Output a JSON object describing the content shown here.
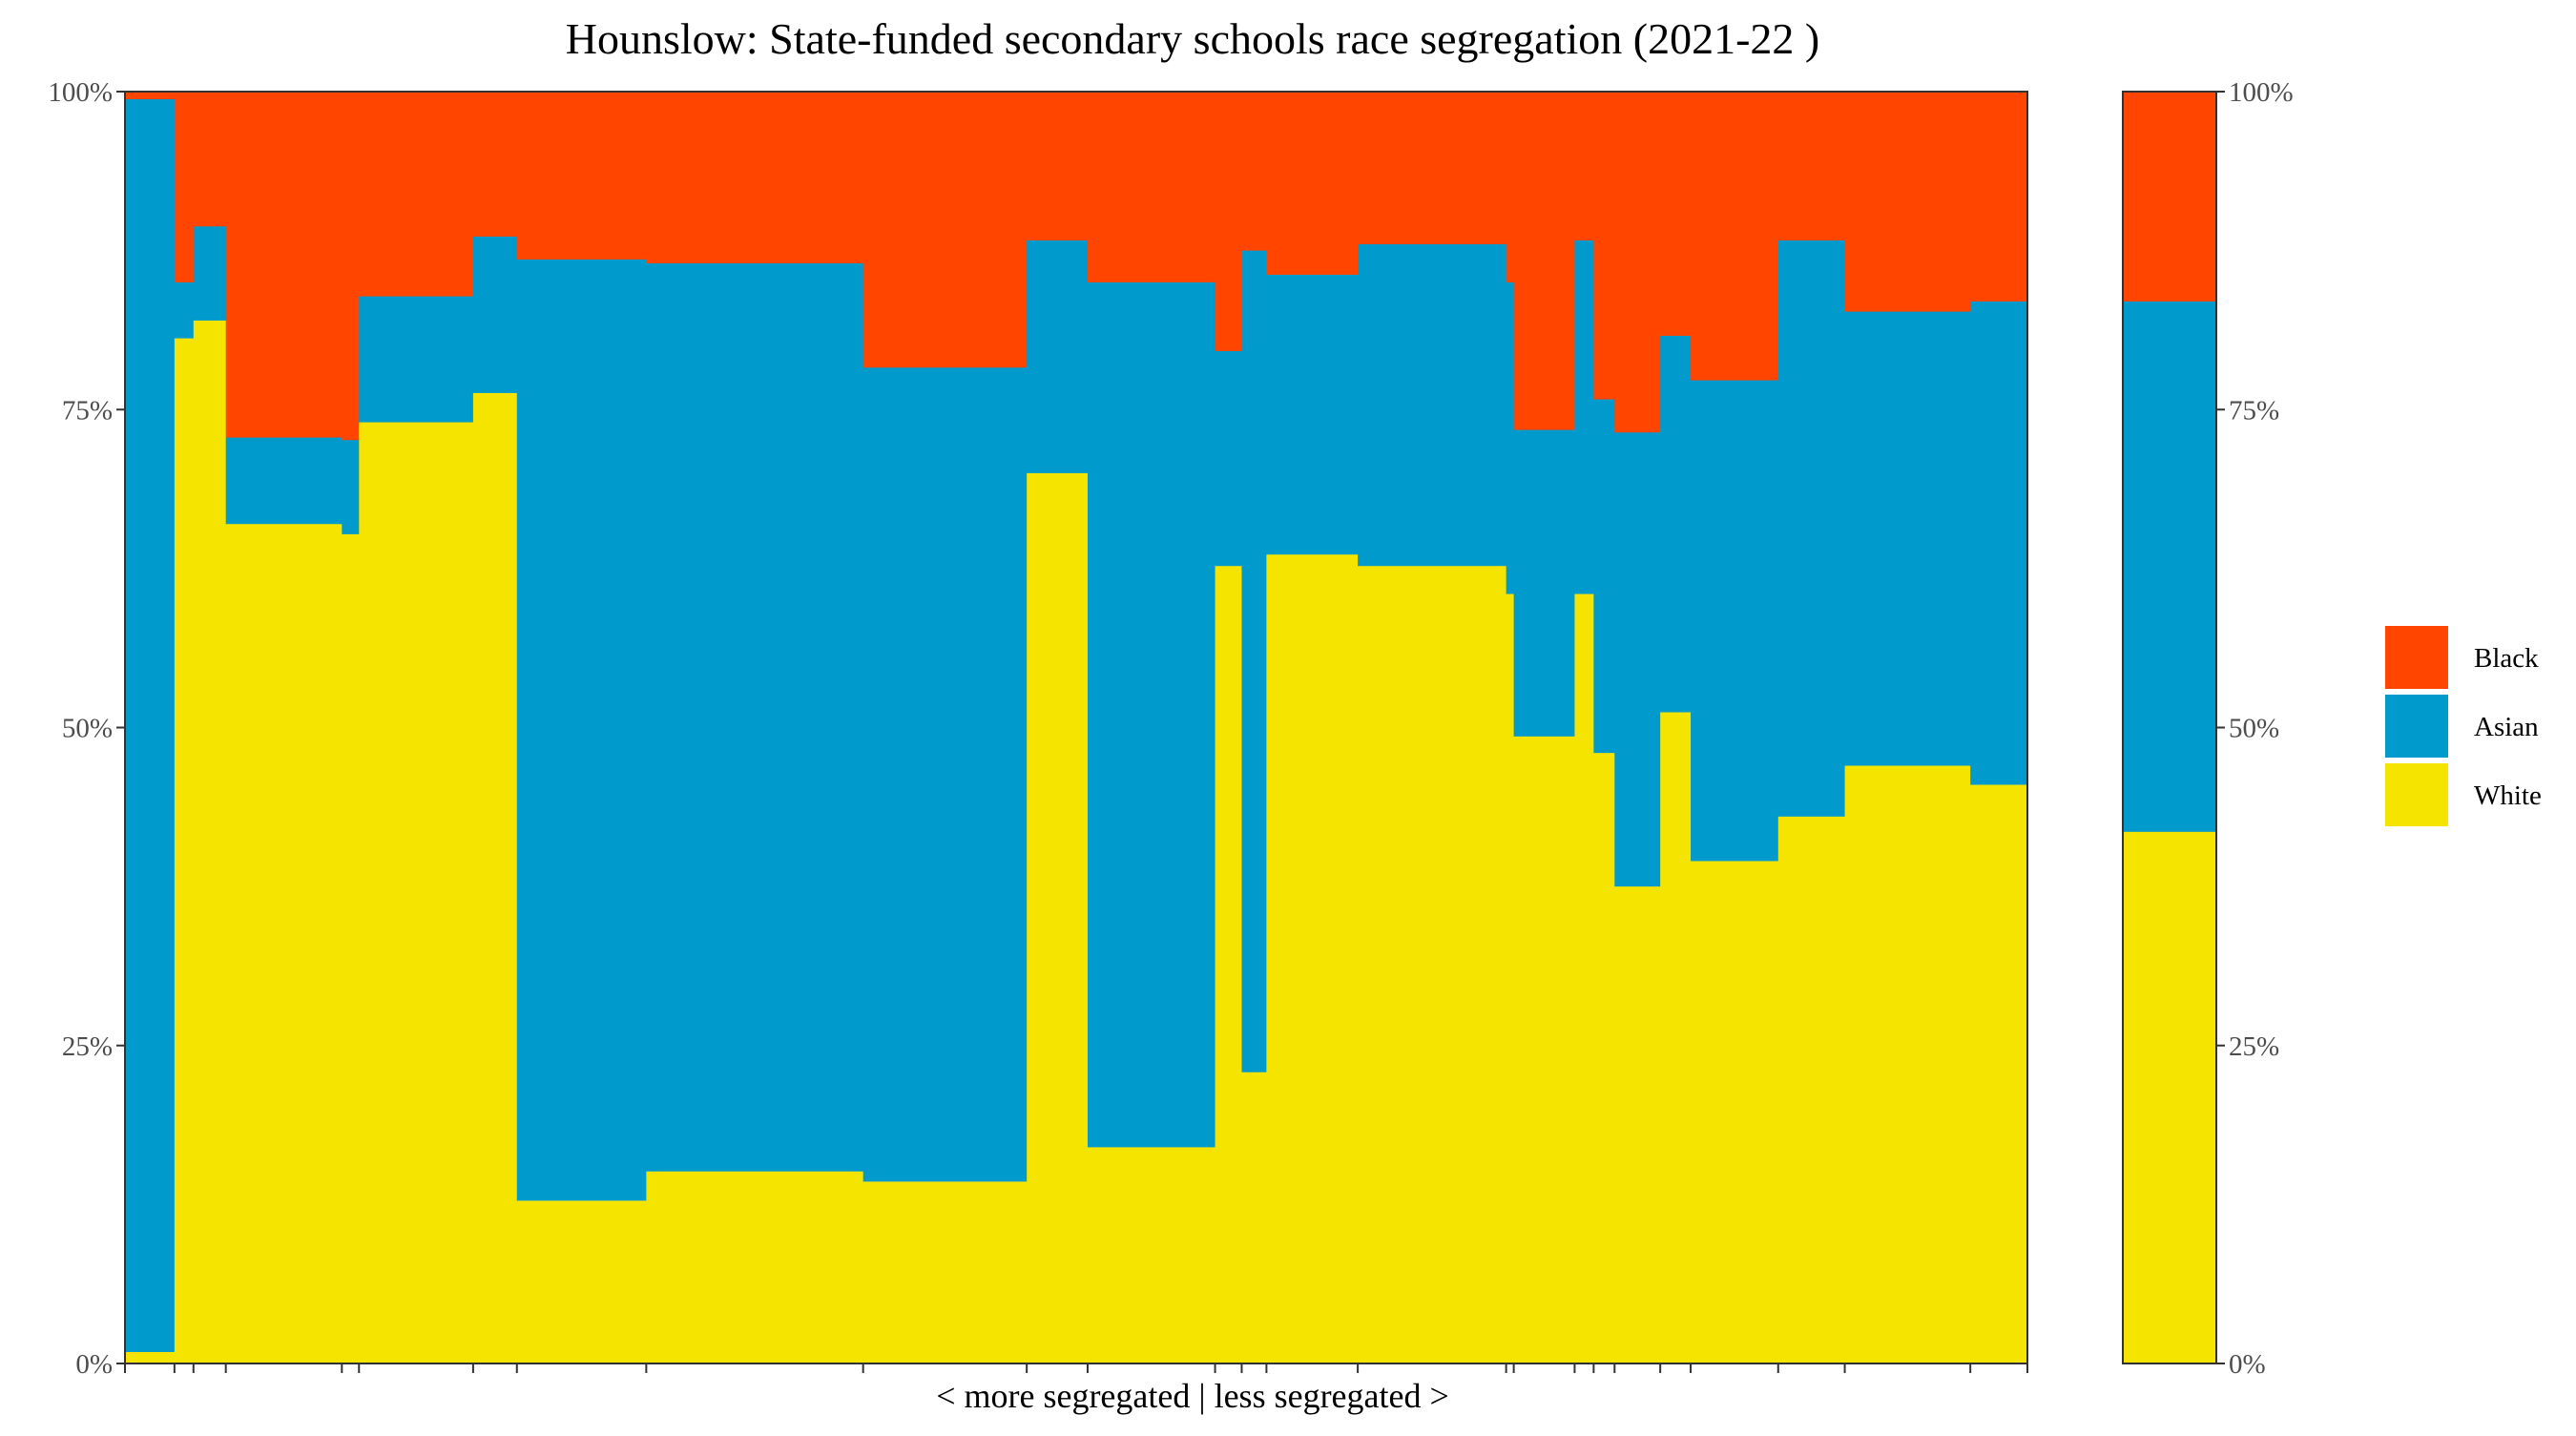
{
  "chart_data": {
    "type": "area",
    "title": "Hounslow: State-funded secondary schools race segregation (2021-22 )",
    "xlabel": "< more segregated | less segregated >",
    "ylabel": "",
    "ylim": [
      0,
      100
    ],
    "y_ticks": [
      "0%",
      "25%",
      "50%",
      "75%",
      "100%"
    ],
    "y_tick_values": [
      0,
      25,
      50,
      75,
      100
    ],
    "legend_position": "right",
    "grid": false,
    "x_range": [
      0,
      100
    ],
    "categories_order": [
      "Black",
      "Asian",
      "White"
    ],
    "colors": {
      "Black": "#ff4500",
      "Asian": "#009acd",
      "White": "#f5e400"
    },
    "legend": [
      {
        "name": "Black",
        "color": "#ff4500"
      },
      {
        "name": "Asian",
        "color": "#009acd"
      },
      {
        "name": "White",
        "color": "#f5e400"
      }
    ],
    "schools": [
      {
        "x_start": 0.0,
        "x_end": 2.6,
        "white": 0.9,
        "white_asian": 99.4
      },
      {
        "x_start": 2.6,
        "x_end": 3.6,
        "white": 80.6,
        "white_asian": 85.0
      },
      {
        "x_start": 3.6,
        "x_end": 5.3,
        "white": 82.0,
        "white_asian": 89.4
      },
      {
        "x_start": 5.3,
        "x_end": 11.4,
        "white": 66.0,
        "white_asian": 72.8
      },
      {
        "x_start": 11.4,
        "x_end": 12.3,
        "white": 65.2,
        "white_asian": 72.6
      },
      {
        "x_start": 12.3,
        "x_end": 18.3,
        "white": 74.0,
        "white_asian": 83.9
      },
      {
        "x_start": 18.3,
        "x_end": 20.6,
        "white": 76.3,
        "white_asian": 88.6
      },
      {
        "x_start": 20.6,
        "x_end": 27.4,
        "white": 12.8,
        "white_asian": 86.8
      },
      {
        "x_start": 27.4,
        "x_end": 38.8,
        "white": 15.1,
        "white_asian": 86.5
      },
      {
        "x_start": 38.8,
        "x_end": 47.4,
        "white": 14.3,
        "white_asian": 78.3
      },
      {
        "x_start": 47.4,
        "x_end": 50.6,
        "white": 70.0,
        "white_asian": 88.3
      },
      {
        "x_start": 50.6,
        "x_end": 57.3,
        "white": 17.0,
        "white_asian": 85.0
      },
      {
        "x_start": 57.3,
        "x_end": 58.7,
        "white": 62.7,
        "white_asian": 79.6
      },
      {
        "x_start": 58.7,
        "x_end": 60.0,
        "white": 22.9,
        "white_asian": 87.5
      },
      {
        "x_start": 60.0,
        "x_end": 64.8,
        "white": 63.6,
        "white_asian": 85.6
      },
      {
        "x_start": 64.8,
        "x_end": 72.6,
        "white": 62.7,
        "white_asian": 88.0
      },
      {
        "x_start": 72.6,
        "x_end": 73.0,
        "white": 60.5,
        "white_asian": 85.0
      },
      {
        "x_start": 73.0,
        "x_end": 76.2,
        "white": 49.3,
        "white_asian": 73.4
      },
      {
        "x_start": 76.2,
        "x_end": 77.2,
        "white": 60.5,
        "white_asian": 88.3
      },
      {
        "x_start": 77.2,
        "x_end": 78.3,
        "white": 48.0,
        "white_asian": 75.8
      },
      {
        "x_start": 78.3,
        "x_end": 80.7,
        "white": 37.5,
        "white_asian": 73.2
      },
      {
        "x_start": 80.7,
        "x_end": 82.3,
        "white": 51.2,
        "white_asian": 80.8
      },
      {
        "x_start": 82.3,
        "x_end": 86.9,
        "white": 39.5,
        "white_asian": 77.3
      },
      {
        "x_start": 86.9,
        "x_end": 90.4,
        "white": 43.0,
        "white_asian": 88.3
      },
      {
        "x_start": 90.4,
        "x_end": 97.0,
        "white": 47.0,
        "white_asian": 82.7
      },
      {
        "x_start": 97.0,
        "x_end": 100.0,
        "white": 45.5,
        "white_asian": 83.5
      }
    ],
    "overall": {
      "white": 41.8,
      "white_asian": 83.5
    }
  }
}
